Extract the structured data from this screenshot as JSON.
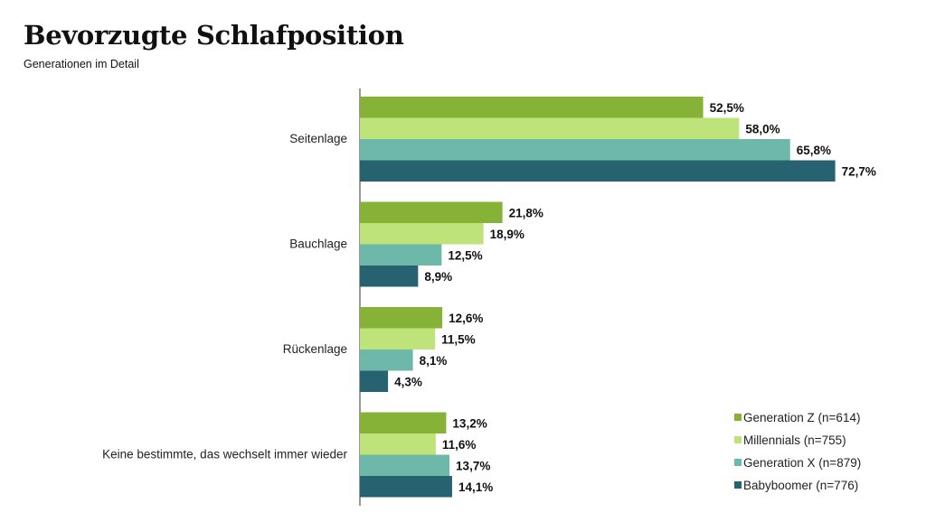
{
  "header": {
    "title": "Bevorzugte Schlafposition",
    "subtitle": "Generationen im Detail"
  },
  "chart_data": {
    "type": "bar",
    "orientation": "horizontal",
    "title": "Bevorzugte Schlafposition",
    "subtitle": "Generationen im Detail",
    "categories": [
      "Seitenlage",
      "Bauchlage",
      "Rückenlage",
      "Keine bestimmte, das wechselt immer wieder"
    ],
    "series": [
      {
        "name": "Generation Z (n=614)",
        "color": "#86b337",
        "values": [
          52.5,
          21.8,
          12.6,
          13.2
        ],
        "labels": [
          "52,5%",
          "21,8%",
          "12,6%",
          "13,2%"
        ]
      },
      {
        "name": "Millennials (n=755)",
        "color": "#bde37a",
        "values": [
          58.0,
          18.9,
          11.5,
          11.6
        ],
        "labels": [
          "58,0%",
          "18,9%",
          "11,5%",
          "11,6%"
        ]
      },
      {
        "name": "Generation X (n=879)",
        "color": "#6db8a9",
        "values": [
          65.8,
          12.5,
          8.1,
          13.7
        ],
        "labels": [
          "65,8%",
          "12,5%",
          "8,1%",
          "13,7%"
        ]
      },
      {
        "name": "Babyboomer (n=776)",
        "color": "#276270",
        "values": [
          72.7,
          8.9,
          4.3,
          14.1
        ],
        "labels": [
          "72,7%",
          "8,9%",
          "4,3%",
          "14,1%"
        ]
      }
    ],
    "xlim": [
      0,
      100
    ],
    "grid": false,
    "legend_position": "bottom-right"
  }
}
